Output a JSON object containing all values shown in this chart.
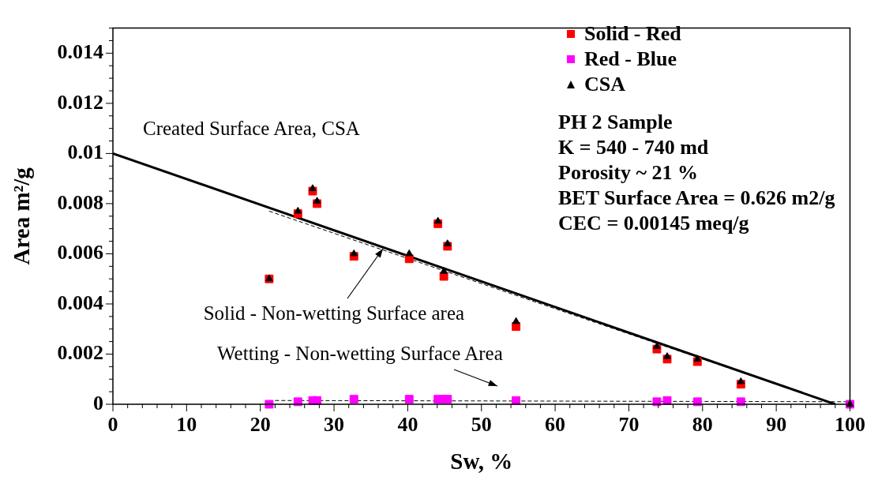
{
  "chart_data": {
    "type": "scatter",
    "xlabel": "Sw, %",
    "ylabel": "Area m²/g",
    "xlim": [
      0,
      100
    ],
    "ylim": [
      0,
      0.015
    ],
    "xticks": [
      0,
      {
        "value": 2,
        "label": null
      },
      {
        "value": 4,
        "label": null
      },
      {
        "value": 6,
        "label": null
      },
      {
        "value": 8,
        "label": null
      },
      10,
      {
        "value": 12,
        "label": null
      },
      {
        "value": 14,
        "label": null
      },
      {
        "value": 16,
        "label": null
      },
      {
        "value": 18,
        "label": null
      },
      20,
      {
        "value": 22,
        "label": null
      },
      {
        "value": 24,
        "label": null
      },
      {
        "value": 26,
        "label": null
      },
      {
        "value": 28,
        "label": null
      },
      30,
      {
        "value": 32,
        "label": null
      },
      {
        "value": 34,
        "label": null
      },
      {
        "value": 36,
        "label": null
      },
      {
        "value": 38,
        "label": null
      },
      40,
      {
        "value": 42,
        "label": null
      },
      {
        "value": 44,
        "label": null
      },
      {
        "value": 46,
        "label": null
      },
      {
        "value": 48,
        "label": null
      },
      50,
      {
        "value": 52,
        "label": null
      },
      {
        "value": 54,
        "label": null
      },
      {
        "value": 56,
        "label": null
      },
      {
        "value": 58,
        "label": null
      },
      60,
      {
        "value": 62,
        "label": null
      },
      {
        "value": 64,
        "label": null
      },
      {
        "value": 66,
        "label": null
      },
      {
        "value": 68,
        "label": null
      },
      70,
      {
        "value": 72,
        "label": null
      },
      {
        "value": 74,
        "label": null
      },
      {
        "value": 76,
        "label": null
      },
      {
        "value": 78,
        "label": null
      },
      80,
      {
        "value": 82,
        "label": null
      },
      {
        "value": 84,
        "label": null
      },
      {
        "value": 86,
        "label": null
      },
      {
        "value": 88,
        "label": null
      },
      90,
      {
        "value": 92,
        "label": null
      },
      {
        "value": 94,
        "label": null
      },
      {
        "value": 96,
        "label": null
      },
      {
        "value": 98,
        "label": null
      },
      100
    ],
    "yticks": [
      0,
      {
        "value": 0.0005,
        "label": null
      },
      {
        "value": 0.001,
        "label": null
      },
      {
        "value": 0.0015,
        "label": null
      },
      0.002,
      {
        "value": 0.0025,
        "label": null
      },
      {
        "value": 0.003,
        "label": null
      },
      {
        "value": 0.0035,
        "label": null
      },
      0.004,
      {
        "value": 0.0045,
        "label": null
      },
      {
        "value": 0.005,
        "label": null
      },
      {
        "value": 0.0055,
        "label": null
      },
      0.006,
      {
        "value": 0.0065,
        "label": null
      },
      {
        "value": 0.007,
        "label": null
      },
      {
        "value": 0.0075,
        "label": null
      },
      0.008,
      {
        "value": 0.0085,
        "label": null
      },
      {
        "value": 0.009,
        "label": null
      },
      {
        "value": 0.0095,
        "label": null
      },
      0.01,
      {
        "value": 0.0105,
        "label": null
      },
      {
        "value": 0.011,
        "label": null
      },
      {
        "value": 0.0115,
        "label": null
      },
      0.012,
      {
        "value": 0.0125,
        "label": null
      },
      {
        "value": 0.013,
        "label": null
      },
      {
        "value": 0.0135,
        "label": null
      },
      0.014,
      {
        "value": 0.0145,
        "label": null
      },
      {
        "value": 0.015,
        "label": null
      }
    ],
    "grid": false,
    "legend": "top right",
    "series": [
      {
        "type": "line",
        "marker": "none",
        "line_style": "solid",
        "color": "#000000",
        "x": [
          0,
          98
        ],
        "values": [
          0.01,
          0
        ]
      },
      {
        "type": "line",
        "marker": "none",
        "line_style": "dashed",
        "color": "#000000",
        "x": [
          21.2,
          98
        ],
        "values": [
          0.0077,
          0
        ]
      },
      {
        "type": "line",
        "marker": "none",
        "line_style": "dashed",
        "color": "#000000",
        "x": [
          22,
          100
        ],
        "values": [
          0.00015,
          0.0001
        ]
      },
      {
        "name": "Solid - Red",
        "marker": "square",
        "color": "#ff0000",
        "x": [
          21.2,
          25.1,
          27.1,
          27.7,
          32.7,
          40.2,
          44.1,
          44.9,
          45.4,
          54.7,
          73.8,
          75.2,
          79.3,
          85.2
        ],
        "values": [
          0.005,
          0.0076,
          0.0085,
          0.008,
          0.0059,
          0.0058,
          0.0072,
          0.0051,
          0.0063,
          0.0031,
          0.0022,
          0.0018,
          0.0017,
          0.0008
        ]
      },
      {
        "name": "Red - Blue",
        "marker": "square",
        "color": "#ff00ff",
        "x": [
          21.2,
          25.1,
          27.1,
          27.7,
          32.7,
          40.2,
          44.1,
          44.9,
          45.4,
          54.7,
          73.8,
          75.2,
          79.3,
          85.2,
          100
        ],
        "values": [
          0,
          0.0001,
          0.00015,
          0.00015,
          0.0002,
          0.0002,
          0.0002,
          0.0002,
          0.0002,
          0.00015,
          0.0001,
          0.00015,
          0.0001,
          0.0001,
          0
        ]
      },
      {
        "name": "CSA",
        "marker": "triangle",
        "color": "#000000",
        "x": [
          21.2,
          25.1,
          27.1,
          27.7,
          32.7,
          40.2,
          44.1,
          44.9,
          45.4,
          54.7,
          73.8,
          75.2,
          79.3,
          85.2,
          100
        ],
        "values": [
          0.005,
          0.0077,
          0.0086,
          0.0081,
          0.006,
          0.006,
          0.0073,
          0.0053,
          0.0064,
          0.0033,
          0.0023,
          0.0019,
          0.0018,
          0.0009,
          0
        ]
      }
    ],
    "annotations": [
      "Created Surface Area, CSA",
      {
        "text": "Solid - Non-wetting Surface area",
        "x": 36.6,
        "y": 0.0062
      },
      "Wetting - Non-wetting Surface Area",
      "PH 2 Sample",
      "K = 540 - 740 md",
      "Porosity ~ 21 %",
      "BET Surface Area = 0.626 m2/g",
      "CEC = 0.00145 meq/g"
    ]
  }
}
